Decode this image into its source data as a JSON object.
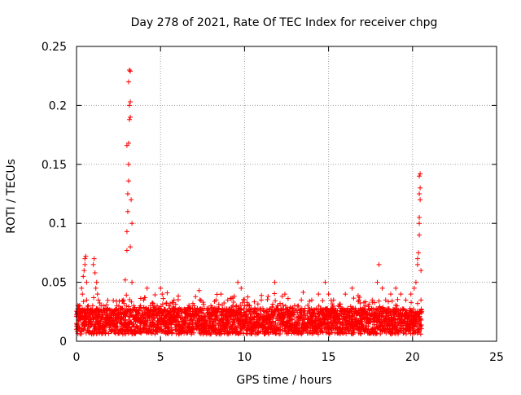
{
  "chart_data": {
    "type": "scatter",
    "title": "Day 278 of 2021, Rate Of TEC Index for receiver chpg",
    "xlabel": "GPS time / hours",
    "ylabel": "ROTI / TECUs",
    "xlim": [
      0,
      25
    ],
    "ylim": [
      0,
      0.25
    ],
    "x_ticks": [
      0,
      5,
      10,
      15,
      20,
      25
    ],
    "x_tick_labels": [
      "0",
      "5",
      "10",
      "15",
      "20",
      "25"
    ],
    "y_ticks": [
      0,
      0.05,
      0.1,
      0.15,
      0.2,
      0.25
    ],
    "y_tick_labels": [
      "0",
      "0.05",
      "0.1",
      "0.15",
      "0.2",
      "0.25"
    ],
    "grid": true,
    "marker": "+",
    "series": [
      {
        "name": "ROTI",
        "color": "#ff0000",
        "points": [
          [
            0.0,
            0.015
          ],
          [
            0.05,
            0.025
          ],
          [
            0.1,
            0.02
          ],
          [
            0.15,
            0.012
          ],
          [
            0.2,
            0.03
          ],
          [
            0.25,
            0.018
          ],
          [
            0.3,
            0.045
          ],
          [
            0.35,
            0.04
          ],
          [
            0.4,
            0.055
          ],
          [
            0.45,
            0.06
          ],
          [
            0.5,
            0.065
          ],
          [
            0.5,
            0.07
          ],
          [
            0.55,
            0.072
          ],
          [
            0.6,
            0.05
          ],
          [
            0.6,
            0.035
          ],
          [
            0.7,
            0.03
          ],
          [
            0.8,
            0.02
          ],
          [
            0.9,
            0.025
          ],
          [
            1.0,
            0.065
          ],
          [
            1.05,
            0.07
          ],
          [
            1.1,
            0.058
          ],
          [
            1.15,
            0.045
          ],
          [
            1.2,
            0.05
          ],
          [
            1.25,
            0.04
          ],
          [
            1.3,
            0.035
          ],
          [
            1.4,
            0.025
          ],
          [
            1.5,
            0.02
          ],
          [
            1.6,
            0.03
          ],
          [
            1.7,
            0.028
          ],
          [
            1.8,
            0.022
          ],
          [
            1.9,
            0.018
          ],
          [
            2.0,
            0.02
          ],
          [
            2.2,
            0.025
          ],
          [
            2.4,
            0.03
          ],
          [
            2.6,
            0.028
          ],
          [
            2.8,
            0.035
          ],
          [
            2.9,
            0.052
          ],
          [
            3.0,
            0.077
          ],
          [
            3.0,
            0.093
          ],
          [
            3.05,
            0.11
          ],
          [
            3.05,
            0.125
          ],
          [
            3.1,
            0.136
          ],
          [
            3.1,
            0.15
          ],
          [
            3.0,
            0.166
          ],
          [
            3.1,
            0.168
          ],
          [
            3.15,
            0.188
          ],
          [
            3.2,
            0.19
          ],
          [
            3.15,
            0.2
          ],
          [
            3.2,
            0.203
          ],
          [
            3.1,
            0.22
          ],
          [
            3.15,
            0.23
          ],
          [
            3.2,
            0.229
          ],
          [
            3.25,
            0.12
          ],
          [
            3.3,
            0.1
          ],
          [
            3.3,
            0.05
          ],
          [
            3.2,
            0.08
          ],
          [
            3.4,
            0.03
          ],
          [
            3.6,
            0.025
          ],
          [
            3.8,
            0.03
          ],
          [
            4.0,
            0.035
          ],
          [
            4.2,
            0.045
          ],
          [
            4.4,
            0.03
          ],
          [
            4.6,
            0.025
          ],
          [
            4.8,
            0.03
          ],
          [
            5.0,
            0.045
          ],
          [
            5.1,
            0.04
          ],
          [
            5.3,
            0.025
          ],
          [
            5.5,
            0.03
          ],
          [
            5.8,
            0.035
          ],
          [
            6.0,
            0.025
          ],
          [
            6.3,
            0.02
          ],
          [
            6.6,
            0.025
          ],
          [
            7.0,
            0.03
          ],
          [
            7.3,
            0.043
          ],
          [
            7.6,
            0.028
          ],
          [
            8.0,
            0.03
          ],
          [
            8.3,
            0.035
          ],
          [
            8.6,
            0.04
          ],
          [
            9.0,
            0.035
          ],
          [
            9.3,
            0.03
          ],
          [
            9.6,
            0.05
          ],
          [
            9.8,
            0.045
          ],
          [
            10.0,
            0.03
          ],
          [
            10.3,
            0.03
          ],
          [
            10.6,
            0.025
          ],
          [
            11.0,
            0.035
          ],
          [
            11.4,
            0.038
          ],
          [
            11.8,
            0.05
          ],
          [
            12.0,
            0.03
          ],
          [
            12.4,
            0.04
          ],
          [
            12.8,
            0.025
          ],
          [
            13.2,
            0.03
          ],
          [
            13.6,
            0.028
          ],
          [
            14.0,
            0.035
          ],
          [
            14.4,
            0.04
          ],
          [
            14.8,
            0.05
          ],
          [
            15.0,
            0.04
          ],
          [
            15.3,
            0.035
          ],
          [
            15.6,
            0.03
          ],
          [
            16.0,
            0.04
          ],
          [
            16.4,
            0.045
          ],
          [
            16.8,
            0.035
          ],
          [
            17.2,
            0.03
          ],
          [
            17.6,
            0.035
          ],
          [
            17.9,
            0.05
          ],
          [
            18.0,
            0.065
          ],
          [
            18.2,
            0.045
          ],
          [
            18.4,
            0.035
          ],
          [
            18.7,
            0.04
          ],
          [
            19.0,
            0.045
          ],
          [
            19.3,
            0.04
          ],
          [
            19.6,
            0.035
          ],
          [
            19.9,
            0.04
          ],
          [
            20.1,
            0.045
          ],
          [
            20.2,
            0.05
          ],
          [
            20.3,
            0.065
          ],
          [
            20.3,
            0.07
          ],
          [
            20.35,
            0.075
          ],
          [
            20.4,
            0.09
          ],
          [
            20.4,
            0.1
          ],
          [
            20.4,
            0.105
          ],
          [
            20.45,
            0.12
          ],
          [
            20.4,
            0.125
          ],
          [
            20.45,
            0.13
          ],
          [
            20.4,
            0.14
          ],
          [
            20.45,
            0.142
          ],
          [
            20.5,
            0.06
          ],
          [
            20.5,
            0.035
          ],
          [
            20.55,
            0.025
          ]
        ]
      }
    ]
  }
}
